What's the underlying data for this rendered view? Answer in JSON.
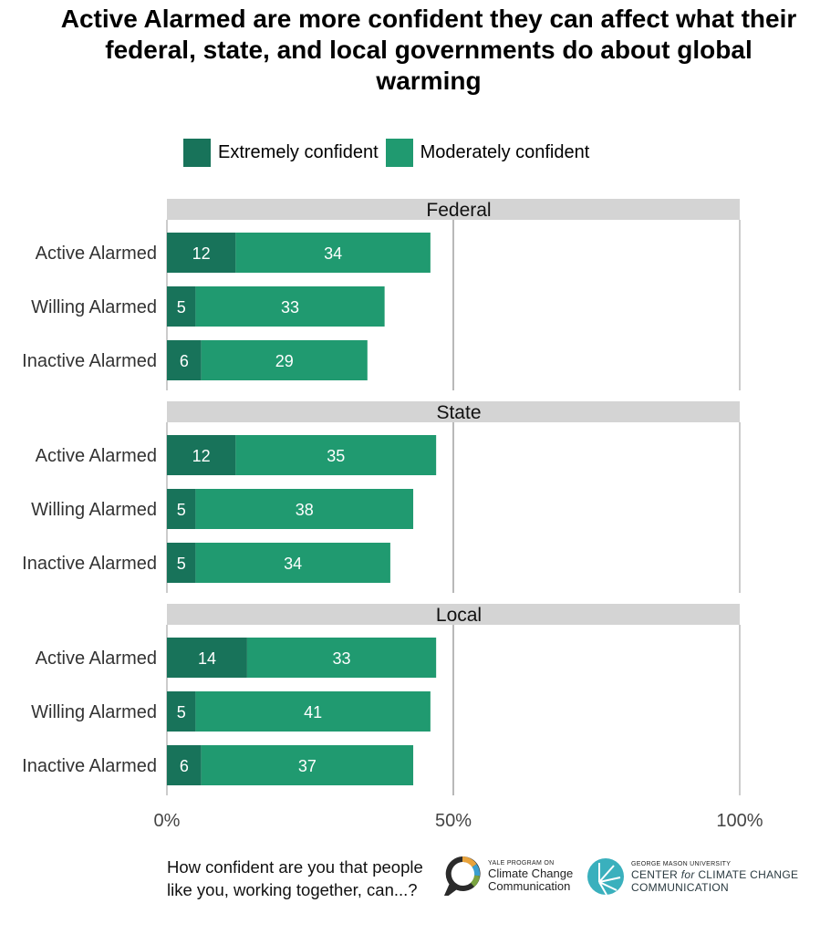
{
  "title": "Active Alarmed are more confident they can affect what their federal, state, and local governments do about global warming",
  "legend": [
    {
      "label": "Extremely confident",
      "color": "#18735a"
    },
    {
      "label": "Moderately confident",
      "color": "#209a70"
    }
  ],
  "footnote": "How confident are you that people like you, working together, can...?",
  "logos": {
    "yale_small": "YALE PROGRAM ON",
    "yale_line1": "Climate Change",
    "yale_line2": "Communication",
    "gmu_small": "GEORGE MASON UNIVERSITY",
    "gmu_line1_a": "CENTER ",
    "gmu_line1_b": "for",
    "gmu_line1_c": " CLIMATE CHANGE",
    "gmu_line2": "COMMUNICATION"
  },
  "chart_data": {
    "type": "bar",
    "orientation": "horizontal",
    "stacked": true,
    "xlim": [
      0,
      100
    ],
    "x_ticks": [
      "0%",
      "50%",
      "100%"
    ],
    "categories": [
      "Active Alarmed",
      "Willing Alarmed",
      "Inactive Alarmed"
    ],
    "panels": [
      {
        "name": "Federal",
        "series": [
          {
            "name": "Extremely confident",
            "values": [
              12,
              5,
              6
            ]
          },
          {
            "name": "Moderately confident",
            "values": [
              34,
              33,
              29
            ]
          }
        ]
      },
      {
        "name": "State",
        "series": [
          {
            "name": "Extremely confident",
            "values": [
              12,
              5,
              5
            ]
          },
          {
            "name": "Moderately confident",
            "values": [
              35,
              38,
              34
            ]
          }
        ]
      },
      {
        "name": "Local",
        "series": [
          {
            "name": "Extremely confident",
            "values": [
              14,
              5,
              6
            ]
          },
          {
            "name": "Moderately confident",
            "values": [
              33,
              41,
              37
            ]
          }
        ]
      }
    ]
  }
}
